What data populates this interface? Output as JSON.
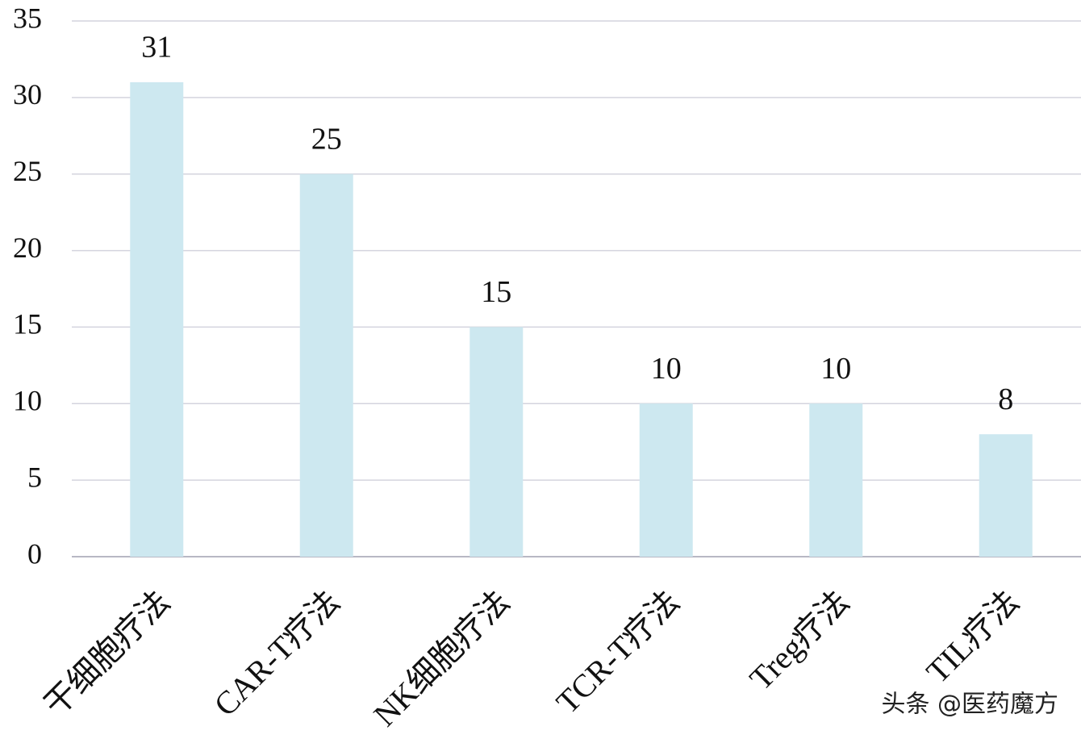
{
  "chart_data": {
    "type": "bar",
    "categories": [
      "干细胞疗法",
      "CAR-T疗法",
      "NK细胞疗法",
      "TCR-T疗法",
      "Treg疗法",
      "TIL疗法"
    ],
    "values": [
      31,
      25,
      15,
      10,
      10,
      8
    ],
    "color": "#cde8f0",
    "ylim": [
      0,
      35
    ],
    "yticks": [
      0,
      5,
      10,
      15,
      20,
      25,
      30,
      35
    ],
    "grid": true,
    "watermark": "头条 @医药魔方"
  }
}
